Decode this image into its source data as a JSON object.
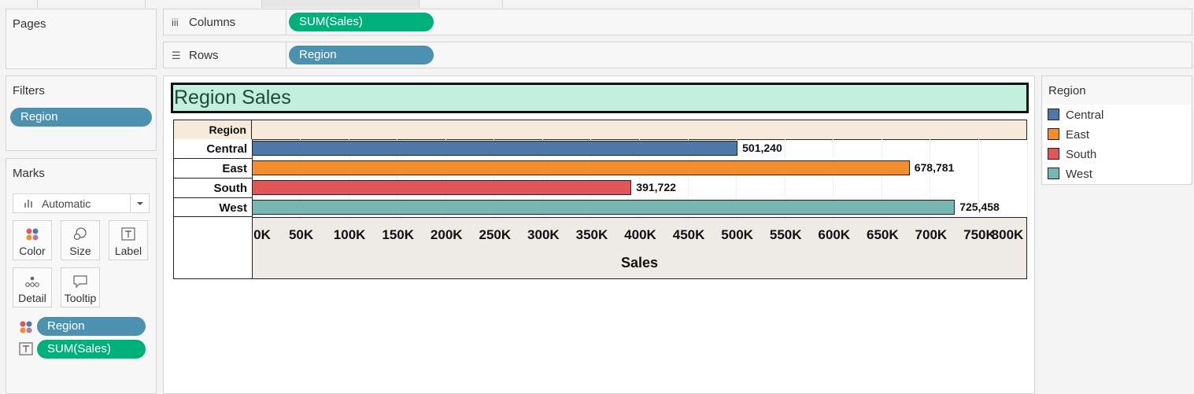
{
  "panels": {
    "pages_title": "Pages",
    "filters_title": "Filters",
    "filters": [
      "Region"
    ],
    "marks_title": "Marks",
    "mark_type": "Automatic",
    "mark_buttons": [
      "Color",
      "Size",
      "Label",
      "Detail",
      "Tooltip"
    ],
    "mark_fields": [
      {
        "icon": "color-icon",
        "label": "Region",
        "color": "#4c92b0"
      },
      {
        "icon": "text-icon",
        "label": "SUM(Sales)",
        "color": "#00b07a"
      }
    ]
  },
  "shelves": {
    "columns_label": "Columns",
    "columns_pill": "SUM(Sales)",
    "rows_label": "Rows",
    "rows_pill": "Region"
  },
  "view": {
    "title": "Region Sales",
    "row_header": "Region"
  },
  "legend": {
    "title": "Region",
    "items": [
      {
        "label": "Central",
        "color": "#4e79a7"
      },
      {
        "label": "East",
        "color": "#f28e2b"
      },
      {
        "label": "South",
        "color": "#e15759"
      },
      {
        "label": "West",
        "color": "#76b7b2"
      }
    ]
  },
  "chart_data": {
    "type": "bar",
    "orientation": "horizontal",
    "title": "Region Sales",
    "categories": [
      "Central",
      "East",
      "South",
      "West"
    ],
    "values": [
      501240,
      678781,
      391722,
      725458
    ],
    "value_labels": [
      "501,240",
      "678,781",
      "391,722",
      "725,458"
    ],
    "colors": [
      "#4e79a7",
      "#f28e2b",
      "#e15759",
      "#76b7b2"
    ],
    "xlabel": "Sales",
    "ylabel": "Region",
    "xlim": [
      0,
      800000
    ],
    "ticks": [
      "0K",
      "50K",
      "100K",
      "150K",
      "200K",
      "250K",
      "300K",
      "350K",
      "400K",
      "450K",
      "500K",
      "550K",
      "600K",
      "650K",
      "700K",
      "750K",
      "800K"
    ],
    "grid": true
  }
}
